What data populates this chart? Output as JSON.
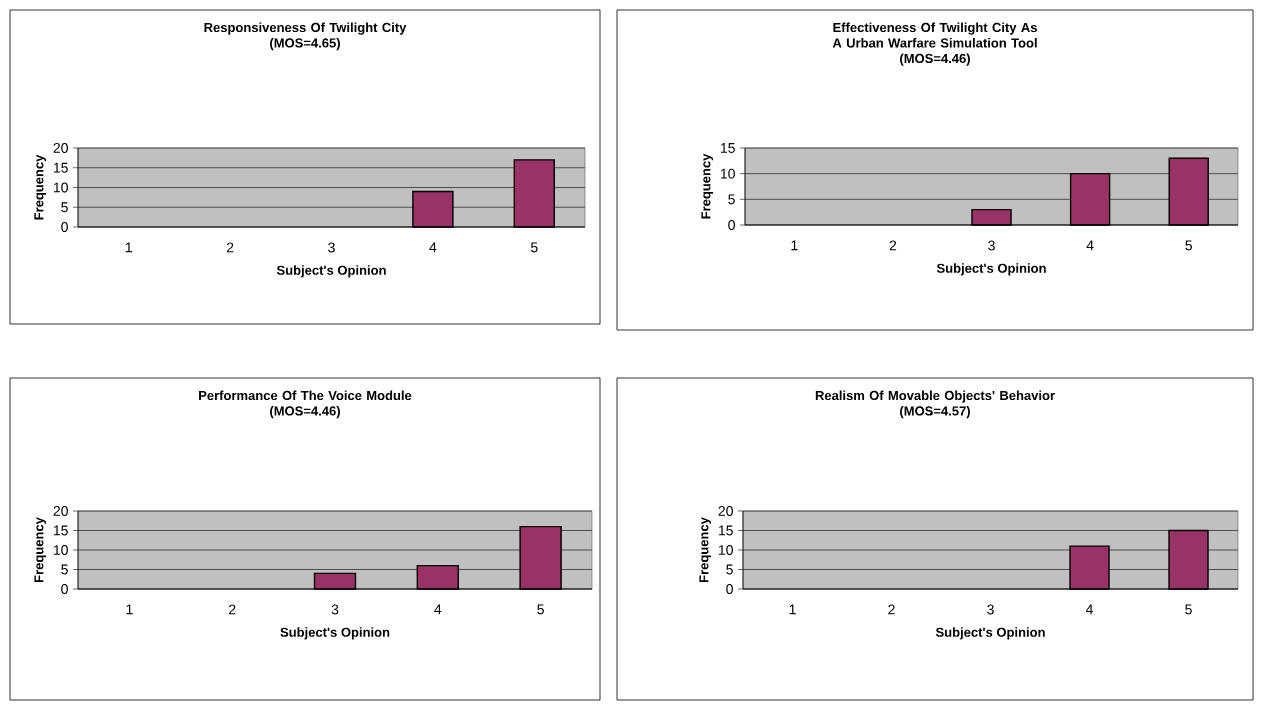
{
  "chart_data": [
    {
      "type": "bar",
      "title": "Responsiveness Of Twilight City",
      "subtitle": "(MOS=4.65)",
      "xlabel": "Subject's Opinion",
      "ylabel": "Frequency",
      "categories": [
        "1",
        "2",
        "3",
        "4",
        "5"
      ],
      "values": [
        null,
        null,
        null,
        9,
        17
      ],
      "color": "#993366",
      "ylim": [
        0,
        20
      ],
      "yticks": [
        0,
        5,
        10,
        15,
        20
      ],
      "grid": "y"
    },
    {
      "type": "bar",
      "title": "Effectiveness Of Twilight City As A Urban Warfare Simulation Tool",
      "subtitle": "(MOS=4.46)",
      "xlabel": "Subject's Opinion",
      "ylabel": "Frequency",
      "categories": [
        "1",
        "2",
        "3",
        "4",
        "5"
      ],
      "values": [
        null,
        null,
        3,
        10,
        13
      ],
      "color": "#993366",
      "ylim": [
        0,
        15
      ],
      "yticks": [
        0,
        5,
        10,
        15
      ],
      "grid": "y"
    },
    {
      "type": "bar",
      "title": "Performance Of The Voice Module",
      "subtitle": "(MOS=4.46)",
      "xlabel": "Subject's Opinion",
      "ylabel": "Frequency",
      "categories": [
        "1",
        "2",
        "3",
        "4",
        "5"
      ],
      "values": [
        null,
        null,
        4,
        6,
        16
      ],
      "color": "#993366",
      "ylim": [
        0,
        20
      ],
      "yticks": [
        0,
        5,
        10,
        15,
        20
      ],
      "grid": "y"
    },
    {
      "type": "bar",
      "title": "Realism Of Movable Objects' Behavior",
      "subtitle": "(MOS=4.57)",
      "xlabel": "Subject's Opinion",
      "ylabel": "Frequency",
      "categories": [
        "1",
        "2",
        "3",
        "4",
        "5"
      ],
      "values": [
        null,
        null,
        null,
        11,
        15
      ],
      "color": "#993366",
      "ylim": [
        0,
        20
      ],
      "yticks": [
        0,
        5,
        10,
        15,
        20
      ],
      "grid": "y"
    }
  ]
}
